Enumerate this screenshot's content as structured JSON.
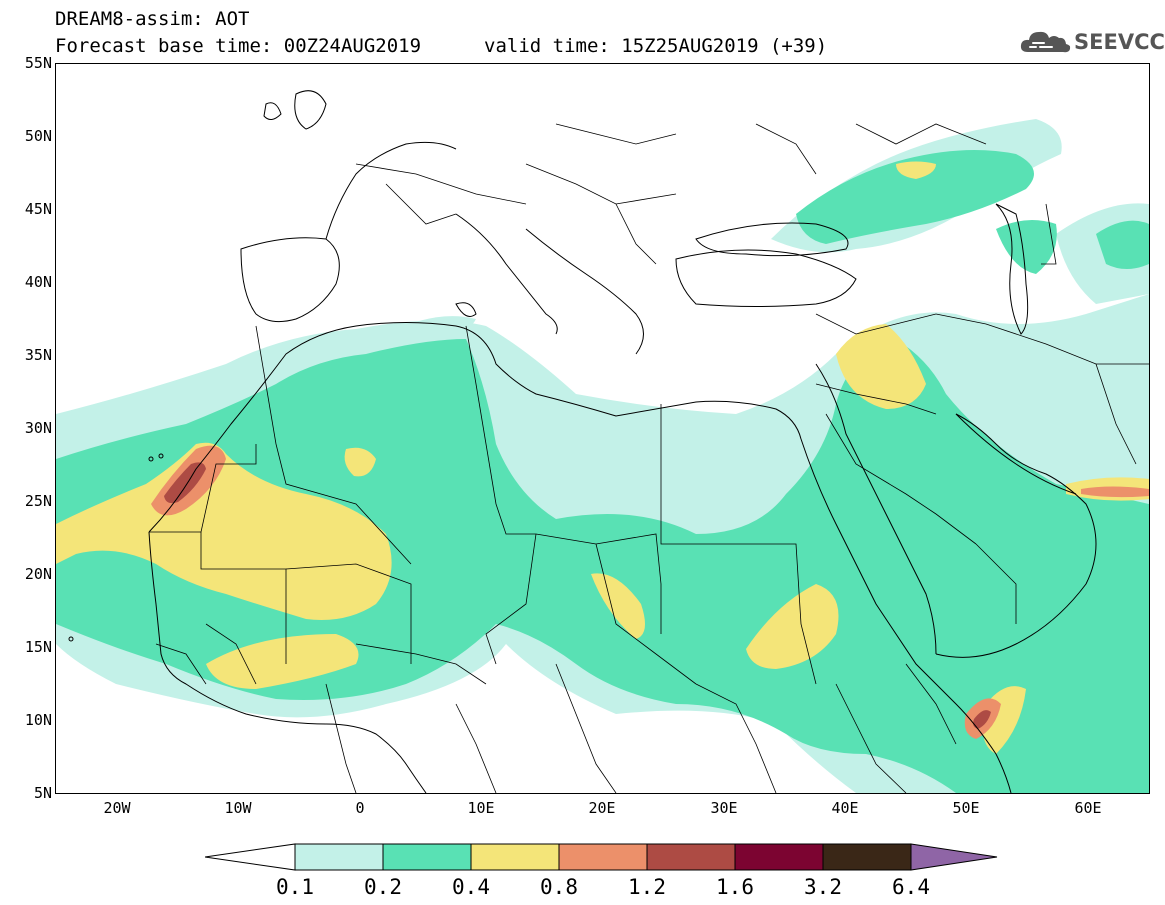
{
  "header": {
    "line1": "DREAM8-assim: AOT",
    "line2": "Forecast base time: 00Z24AUG2019",
    "valid": "valid time: 15Z25AUG2019 (+39)",
    "logo_text": "SEEVCCC"
  },
  "map": {
    "lat_labels": [
      "55N",
      "50N",
      "45N",
      "40N",
      "35N",
      "30N",
      "25N",
      "20N",
      "15N",
      "10N",
      "5N"
    ],
    "lon_labels": [
      "20W",
      "10W",
      "0",
      "10E",
      "20E",
      "30E",
      "40E",
      "50E",
      "60E"
    ],
    "extent": {
      "lon_min": -25,
      "lon_max": 65,
      "lat_min": 5,
      "lat_max": 55
    },
    "land_color": "#ffffff",
    "border_color": "#000000"
  },
  "colorbar": {
    "labels": [
      "0.1",
      "0.2",
      "0.4",
      "0.8",
      "1.2",
      "1.6",
      "3.2",
      "6.4"
    ],
    "colors": [
      "#c3f1e8",
      "#59e1b4",
      "#f4e579",
      "#ec906a",
      "#ad4b44",
      "#7c0431",
      "#3a2717",
      "#8f65a6"
    ]
  }
}
